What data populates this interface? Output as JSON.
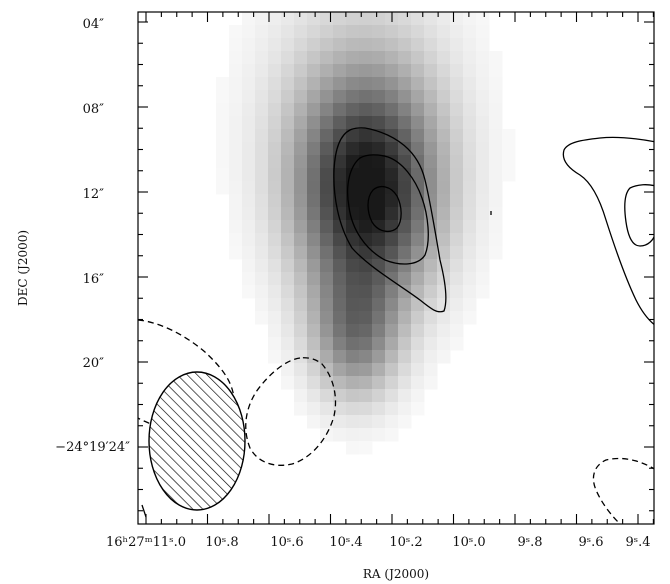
{
  "chart_data": {
    "type": "heatmap",
    "xlabel": "RA (J2000)",
    "ylabel": "DEC (J2000)",
    "x_tick_labels": [
      "16ʰ27ᵐ11ˢ.0",
      "10ˢ.8",
      "10ˢ.6",
      "10ˢ.4",
      "10ˢ.2",
      "10ˢ.0",
      "9ˢ.8",
      "9ˢ.6",
      "9ˢ.4"
    ],
    "y_tick_labels": [
      "04″",
      "08″",
      "12″",
      "16″",
      "20″",
      "−24°19′24″"
    ],
    "image_colormap": "grayscale",
    "grid": false,
    "sources": [
      {
        "ra_s": 10.28,
        "dec_arcsec": 12.2,
        "peak": 0.92,
        "width_s": 0.16,
        "height_arcsec": 3.6
      },
      {
        "ra_s": 10.32,
        "dec_arcsec": 18.8,
        "peak": 0.48,
        "width_s": 0.1,
        "height_arcsec": 2.2
      },
      {
        "ra_s": 10.3,
        "dec_arcsec": 8.0,
        "peak": 0.22,
        "width_s": 0.22,
        "height_arcsec": 4.5
      }
    ],
    "contour_levels": {
      "positive": 3,
      "negative": 1
    },
    "beam": {
      "ra_s": 10.86,
      "dec_arcsec": 23.4,
      "major_arcsec": 6.6,
      "minor_arcsec": 0.17,
      "pa_deg": 0
    }
  },
  "colors": {
    "background": "#ffffff",
    "frame": "#000000",
    "contour": "#000000"
  }
}
